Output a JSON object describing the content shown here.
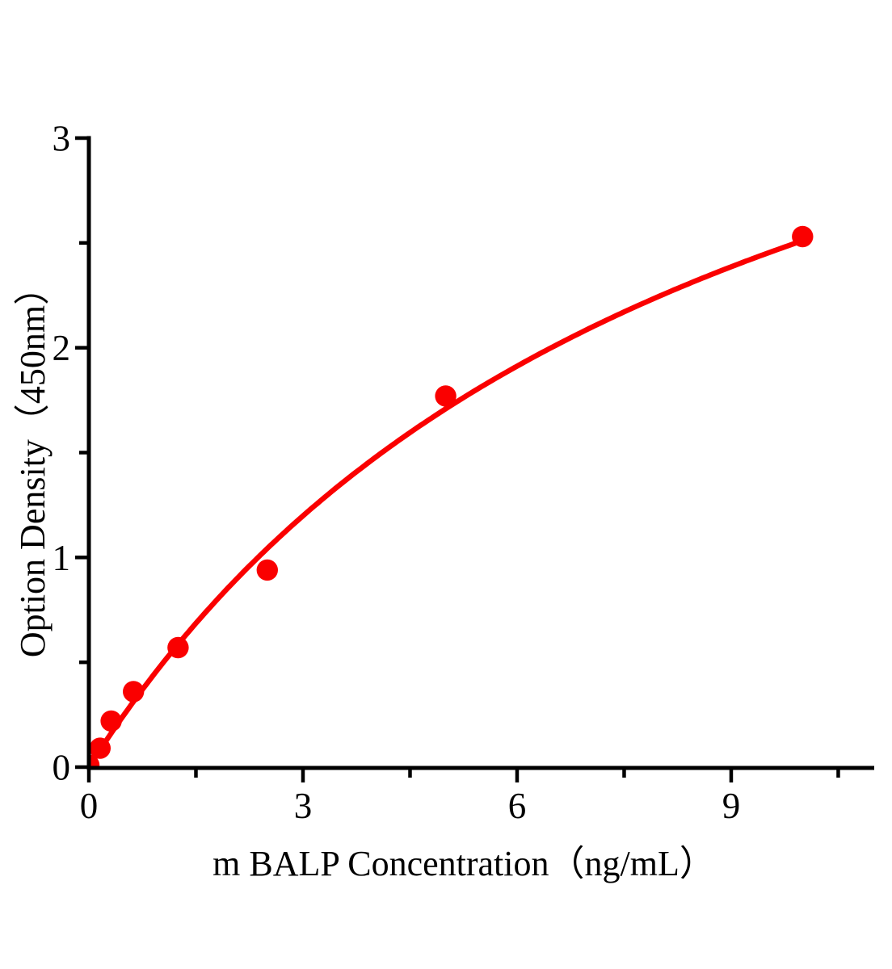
{
  "figure": {
    "background": "#ffffff"
  },
  "chart_data": {
    "type": "scatter",
    "title": "",
    "xlabel": "m BALP Concentration（ng/mL）",
    "ylabel": "Option Density（450nm）",
    "xlim": [
      0,
      11.0
    ],
    "ylim": [
      0,
      3
    ],
    "grid": false,
    "legend": "none",
    "x_tick_labels": [
      "0",
      "3",
      "6",
      "9"
    ],
    "x_ticks_major": [
      0,
      3,
      6,
      9
    ],
    "x_ticks_minor": [
      1.5,
      4.5,
      7.5,
      10.5
    ],
    "y_tick_labels": [
      "0",
      "1",
      "2",
      "3"
    ],
    "y_ticks_major": [
      0,
      1,
      2,
      3
    ],
    "y_ticks_minor": [
      0.5,
      1.5,
      2.5
    ],
    "points": [
      {
        "x": 0,
        "y": 0.01
      },
      {
        "x": 0.156,
        "y": 0.09
      },
      {
        "x": 0.3125,
        "y": 0.22
      },
      {
        "x": 0.625,
        "y": 0.36
      },
      {
        "x": 1.25,
        "y": 0.57
      },
      {
        "x": 2.5,
        "y": 0.94
      },
      {
        "x": 5,
        "y": 1.77
      },
      {
        "x": 10,
        "y": 2.53
      }
    ],
    "fit_curve": {
      "model": "saturation y = a*x/(b+x)",
      "a": 4.73,
      "b": 8.84,
      "x_start": 0,
      "x_end": 10
    },
    "colors": {
      "series_red": "#fa0000",
      "axis_black": "#000000"
    }
  }
}
